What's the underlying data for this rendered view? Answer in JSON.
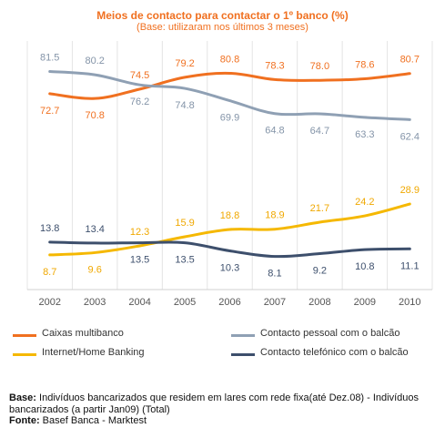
{
  "chart_data": {
    "type": "line",
    "title": "Meios de contacto para contactar o 1º banco (%)",
    "subtitle": "(Base: utilizaram nos últimos 3 meses)",
    "x": [
      "2002",
      "2003",
      "2004",
      "2005",
      "2006",
      "2007",
      "2008",
      "2009",
      "2010"
    ],
    "series": [
      {
        "name": "Caixas multibanco",
        "color": "#f07020",
        "values": [
          72.7,
          70.8,
          74.5,
          79.2,
          80.8,
          78.3,
          78.0,
          78.6,
          80.7
        ]
      },
      {
        "name": "Contacto pessoal com o balcão",
        "color": "#8fa0b4",
        "values": [
          81.5,
          80.2,
          76.2,
          74.8,
          69.9,
          64.8,
          64.7,
          63.3,
          62.4
        ]
      },
      {
        "name": "Internet/Home Banking",
        "color": "#f5b800",
        "values": [
          8.7,
          9.6,
          12.3,
          15.9,
          18.8,
          18.9,
          21.7,
          24.2,
          28.9
        ]
      },
      {
        "name": "Contacto telefónico com o balcão",
        "color": "#3d4f6c",
        "values": [
          13.8,
          13.4,
          13.5,
          13.5,
          10.3,
          8.1,
          9.2,
          10.8,
          11.1
        ]
      }
    ],
    "grid": true
  },
  "footer": {
    "base_label": "Base:",
    "base_text": "Indivíduos bancarizados que residem em lares com rede fixa(até Dez.08) - Indivíduos bancarizados (a partir Jan09) (Total)",
    "source_label": "Fonte:",
    "source_text": "Basef Banca - Marktest"
  }
}
